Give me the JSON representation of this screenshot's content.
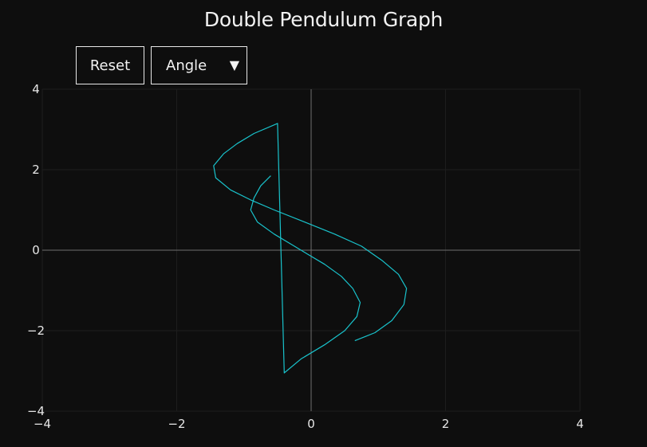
{
  "title": "Double Pendulum Graph",
  "controls": {
    "reset_label": "Reset",
    "mode_select": {
      "selected": "Angle",
      "caret_icon": "triangle-down-icon"
    }
  },
  "colors": {
    "background": "#0e0e0e",
    "trace": "#19c3cc",
    "axis": "#6e6e6e",
    "grid": "#1d1d1d",
    "text": "#f2f2f2"
  },
  "chart_data": {
    "type": "line",
    "title": "Double Pendulum Graph",
    "xlim": [
      -4,
      4
    ],
    "ylim": [
      -4,
      4
    ],
    "xticks": [
      "−4",
      "−2",
      "0",
      "2",
      "4"
    ],
    "yticks": [
      "4",
      "2",
      "0",
      "−2",
      "−4"
    ],
    "grid": true,
    "series": [
      {
        "points": [
          [
            -0.6,
            1.85
          ],
          [
            -0.75,
            1.6
          ],
          [
            -0.85,
            1.3
          ],
          [
            -0.9,
            1.0
          ],
          [
            -0.8,
            0.7
          ],
          [
            -0.55,
            0.4
          ],
          [
            -0.3,
            0.15
          ],
          [
            -0.05,
            -0.1
          ],
          [
            0.2,
            -0.35
          ],
          [
            0.45,
            -0.65
          ],
          [
            0.62,
            -0.95
          ],
          [
            0.73,
            -1.3
          ],
          [
            0.68,
            -1.65
          ],
          [
            0.5,
            -2.0
          ],
          [
            0.2,
            -2.35
          ],
          [
            -0.15,
            -2.7
          ],
          [
            -0.4,
            -3.05
          ],
          [
            -0.5,
            3.15
          ],
          [
            -0.85,
            2.9
          ],
          [
            -1.1,
            2.65
          ],
          [
            -1.3,
            2.4
          ],
          [
            -1.45,
            2.1
          ],
          [
            -1.42,
            1.8
          ],
          [
            -1.2,
            1.5
          ],
          [
            -0.9,
            1.25
          ],
          [
            -0.55,
            1.0
          ],
          [
            -0.1,
            0.7
          ],
          [
            0.35,
            0.4
          ],
          [
            0.75,
            0.1
          ],
          [
            1.05,
            -0.25
          ],
          [
            1.3,
            -0.6
          ],
          [
            1.42,
            -0.95
          ],
          [
            1.38,
            -1.35
          ],
          [
            1.2,
            -1.75
          ],
          [
            0.95,
            -2.05
          ],
          [
            0.8,
            -2.15
          ],
          [
            0.65,
            -2.25
          ]
        ]
      }
    ]
  }
}
